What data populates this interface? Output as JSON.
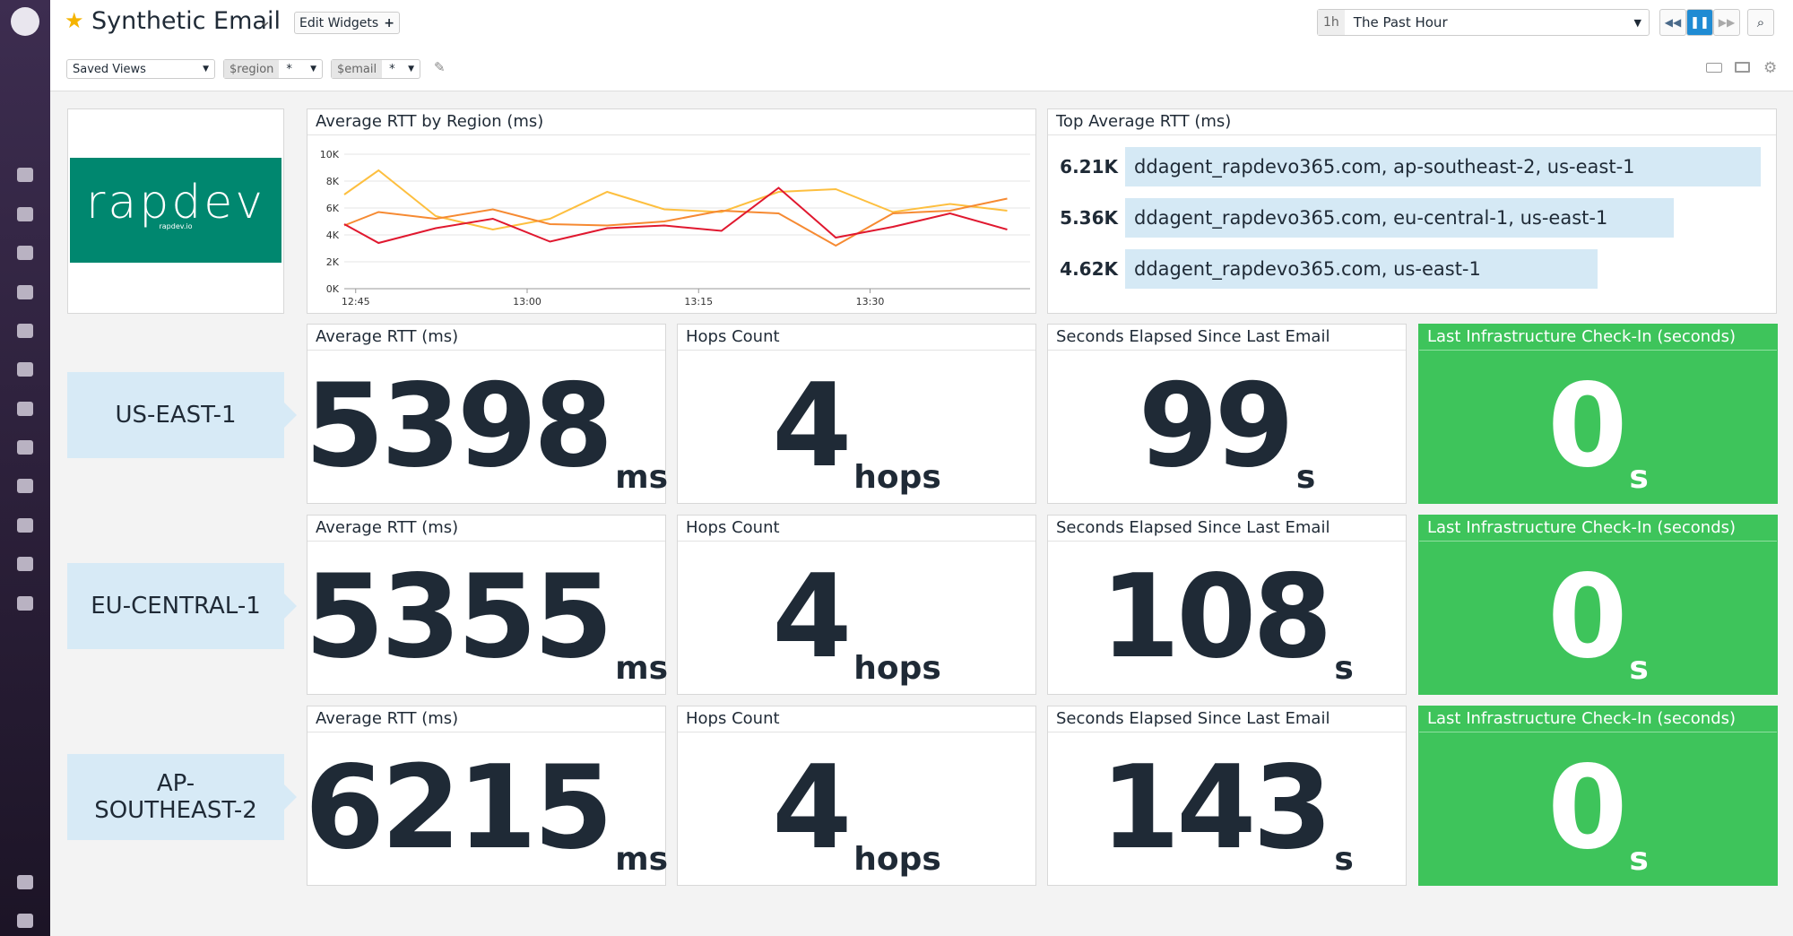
{
  "header": {
    "title": "Synthetic Email",
    "edit_button": "Edit Widgets",
    "time_short": "1h",
    "time_range": "The Past Hour"
  },
  "filters": {
    "saved_views": "Saved Views",
    "variables": [
      {
        "name": "$region",
        "value": "*"
      },
      {
        "name": "$email",
        "value": "*"
      }
    ]
  },
  "logo": {
    "text": "rapdev",
    "subtext": "rapdev.io"
  },
  "line_widget": {
    "chart_data": {
      "type": "line",
      "title": "Average RTT by Region (ms)",
      "x": [
        "12:44",
        "12:47",
        "12:52",
        "12:57",
        "13:02",
        "13:07",
        "13:12",
        "13:17",
        "13:22",
        "13:27",
        "13:32",
        "13:37",
        "13:42"
      ],
      "xlim": [
        "12:44",
        "13:44"
      ],
      "xticks": [
        "12:45",
        "13:00",
        "13:15",
        "13:30"
      ],
      "ylim": [
        0,
        10000
      ],
      "yticks": [
        {
          "value": 0,
          "label": "0K"
        },
        {
          "value": 2000,
          "label": "2K"
        },
        {
          "value": 4000,
          "label": "4K"
        },
        {
          "value": 6000,
          "label": "6K"
        },
        {
          "value": 8000,
          "label": "8K"
        },
        {
          "value": 10000,
          "label": "10K"
        }
      ],
      "grid": true,
      "series": [
        {
          "color": "#fdbf3f",
          "values": [
            7000,
            8800,
            5400,
            4400,
            5200,
            7200,
            5900,
            5700,
            7200,
            7400,
            5700,
            6300,
            5800
          ]
        },
        {
          "color": "#f68a32",
          "values": [
            4700,
            5700,
            5200,
            5900,
            4800,
            4700,
            5000,
            5800,
            5600,
            3200,
            5600,
            5800,
            6700
          ]
        },
        {
          "color": "#e0182f",
          "values": [
            4800,
            3400,
            4500,
            5200,
            3500,
            4500,
            4700,
            4300,
            7500,
            3800,
            4600,
            5600,
            4400
          ]
        }
      ]
    }
  },
  "toplist_widget": {
    "chart_data": {
      "type": "bar",
      "orientation": "horizontal",
      "title": "Top Average RTT (ms)",
      "categories": [
        "ddagent_rapdevo365.com, ap-southeast-2, us-east-1",
        "ddagent_rapdevo365.com, eu-central-1, us-east-1",
        "ddagent_rapdevo365.com, us-east-1"
      ],
      "values": [
        6210,
        5360,
        4620
      ],
      "value_labels": [
        "6.21K",
        "5.36K",
        "4.62K"
      ],
      "color": "#d5e9f5"
    }
  },
  "rows": [
    {
      "region": "US-EAST-1",
      "widgets": [
        {
          "title": "Average RTT (ms)",
          "value": 5398,
          "unit": "ms"
        },
        {
          "title": "Hops Count",
          "value": 4,
          "unit": "hops"
        },
        {
          "title": "Seconds Elapsed Since Last Email",
          "value": 99,
          "unit": "s"
        },
        {
          "title": "Last Infrastructure Check-In (seconds)",
          "value": 0,
          "unit": "s",
          "status": "ok"
        }
      ]
    },
    {
      "region": "EU-CENTRAL-1",
      "widgets": [
        {
          "title": "Average RTT (ms)",
          "value": 5355,
          "unit": "ms"
        },
        {
          "title": "Hops Count",
          "value": 4,
          "unit": "hops"
        },
        {
          "title": "Seconds Elapsed Since Last Email",
          "value": 108,
          "unit": "s"
        },
        {
          "title": "Last Infrastructure Check-In (seconds)",
          "value": 0,
          "unit": "s",
          "status": "ok"
        }
      ]
    },
    {
      "region": "AP-SOUTHEAST-2",
      "widgets": [
        {
          "title": "Average RTT (ms)",
          "value": 6215,
          "unit": "ms"
        },
        {
          "title": "Hops Count",
          "value": 4,
          "unit": "hops"
        },
        {
          "title": "Seconds Elapsed Since Last Email",
          "value": 143,
          "unit": "s"
        },
        {
          "title": "Last Infrastructure Check-In (seconds)",
          "value": 0,
          "unit": "s",
          "status": "ok"
        }
      ]
    }
  ]
}
